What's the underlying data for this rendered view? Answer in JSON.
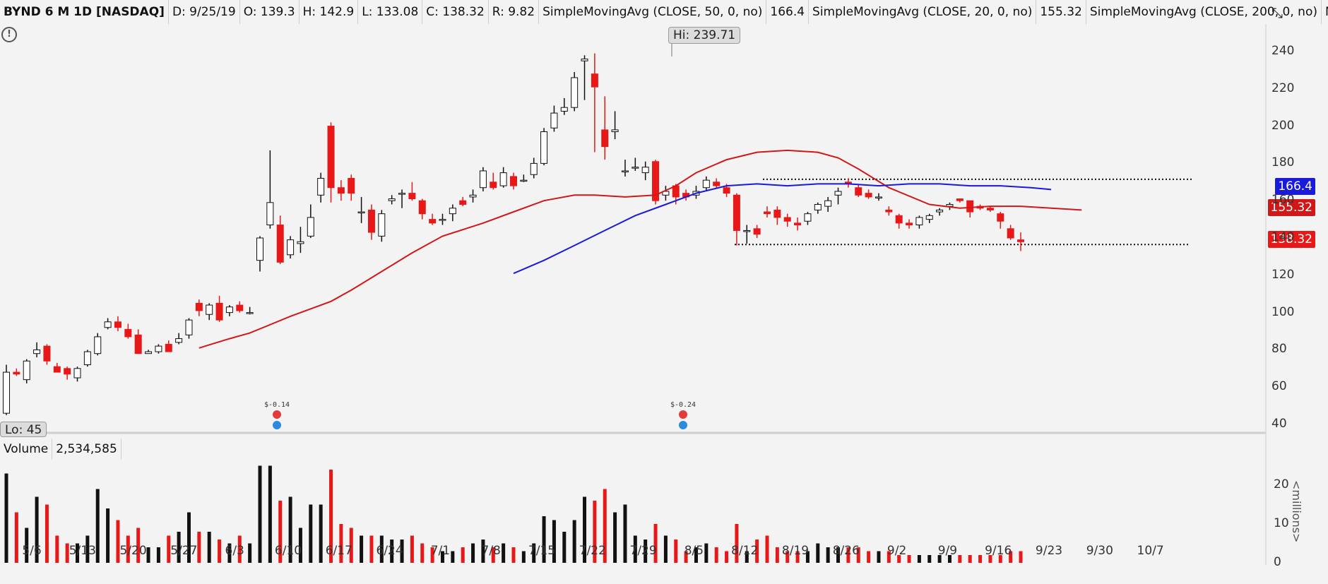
{
  "header": {
    "symbol": "BYND 6 M 1D [NASDAQ]",
    "date": "D: 9/25/19",
    "open": "O: 139.3",
    "high": "H: 142.9",
    "low": "L: 133.08",
    "close": "C: 138.32",
    "range": "R: 9.82",
    "sma50_label": "SimpleMovingAvg (CLOSE, 50, 0, no)",
    "sma50_value": "166.4",
    "sma20_label": "SimpleMovingAvg (CLOSE, 20, 0, no)",
    "sma20_value": "155.32",
    "sma200_label": "SimpleMovingAvg (CLOSE, 200, 0, no)",
    "sma200_value": "N/A"
  },
  "icons": {
    "alert": "exclamation-circle-icon",
    "expand": "expand-arrows-icon"
  },
  "labels": {
    "hi": "Hi: 239.71",
    "lo": "Lo: 45"
  },
  "price_tags": {
    "sma50": "166.4",
    "sma20": "155.32",
    "close": "138.32"
  },
  "volume": {
    "title": "Volume",
    "value": "2,534,585",
    "unit": "<millions>"
  },
  "earnings": [
    {
      "text": "$-0.14",
      "date": "6/3"
    },
    {
      "text": "$-0.24",
      "date": "7/29"
    }
  ],
  "colors": {
    "up": "#ffffff",
    "down": "#e81818",
    "sma50": "#1a1adb",
    "sma20": "#d01818",
    "vol_up": "#111111",
    "vol_down": "#e81818"
  },
  "chart_data": {
    "type": "candlestick",
    "ylim": [
      40,
      250
    ],
    "yticks": [
      "240",
      "220",
      "200",
      "180",
      "160",
      "140",
      "120",
      "100",
      "80",
      "60",
      "40"
    ],
    "xtick_labels": [
      "5/6",
      "5/13",
      "5/20",
      "5/27",
      "6/3",
      "6/10",
      "6/17",
      "6/24",
      "7/1",
      "7/8",
      "7/15",
      "7/22",
      "7/29",
      "8/5",
      "8/12",
      "8/19",
      "8/26",
      "9/2",
      "9/9",
      "9/16",
      "9/23",
      "9/30",
      "10/7"
    ],
    "volume_ylim": [
      0,
      28
    ],
    "volume_yticks": [
      "20",
      "10",
      "0"
    ],
    "resistance": 171.5,
    "support": 136.5,
    "candles": [
      [
        46,
        72,
        45,
        68,
        23
      ],
      [
        68,
        70,
        66,
        67,
        13
      ],
      [
        64,
        75,
        62,
        74,
        9
      ],
      [
        78,
        84,
        76,
        80,
        17
      ],
      [
        82,
        83,
        72,
        74,
        15
      ],
      [
        71,
        73,
        68,
        68,
        7
      ],
      [
        70,
        71,
        64,
        67,
        5
      ],
      [
        65,
        71,
        63,
        70,
        5
      ],
      [
        72,
        80,
        71,
        79,
        7
      ],
      [
        78,
        89,
        77,
        87,
        19
      ],
      [
        92,
        97,
        91,
        95,
        14
      ],
      [
        95,
        98,
        90,
        92,
        11
      ],
      [
        91,
        94,
        86,
        87,
        7
      ],
      [
        88,
        91,
        78,
        78,
        9
      ],
      [
        78,
        80,
        78,
        79,
        4
      ],
      [
        79,
        83,
        78,
        82,
        4
      ],
      [
        83,
        85,
        79,
        79,
        7
      ],
      [
        84,
        89,
        83,
        86,
        8
      ],
      [
        88,
        97,
        86,
        96,
        13
      ],
      [
        105,
        107,
        98,
        101,
        8
      ],
      [
        99,
        105,
        96,
        104,
        8
      ],
      [
        105,
        109,
        95,
        96,
        6
      ],
      [
        100,
        104,
        98,
        103,
        5
      ],
      [
        104,
        106,
        100,
        101,
        7
      ],
      [
        100,
        103,
        99,
        100,
        5
      ]
    ],
    "candles_b": [
      [
        128,
        141,
        122,
        140,
        25
      ],
      [
        147,
        187,
        145,
        159,
        25
      ],
      [
        147,
        152,
        126,
        127,
        16
      ],
      [
        131,
        141,
        129,
        139,
        17
      ],
      [
        137,
        146,
        132,
        138,
        9
      ],
      [
        141,
        158,
        140,
        151,
        15
      ],
      [
        163,
        175,
        159,
        172,
        15
      ],
      [
        200,
        202,
        159,
        167,
        24
      ],
      [
        167,
        171,
        160,
        164,
        10
      ],
      [
        172,
        174,
        160,
        164,
        9
      ],
      [
        154,
        162,
        148,
        154,
        7
      ],
      [
        155,
        158,
        139,
        143,
        7
      ],
      [
        141,
        155,
        138,
        153,
        7
      ],
      [
        160,
        163,
        158,
        161,
        6
      ],
      [
        164,
        166,
        156,
        164,
        6
      ],
      [
        164,
        170,
        160,
        161,
        7
      ],
      [
        160,
        161,
        150,
        153,
        5
      ],
      [
        150,
        153,
        147,
        148,
        4
      ],
      [
        150,
        153,
        147,
        150,
        3
      ],
      [
        153,
        158,
        149,
        156,
        3
      ],
      [
        160,
        162,
        157,
        158,
        4
      ],
      [
        162,
        166,
        159,
        163,
        5
      ],
      [
        167,
        178,
        165,
        176,
        6
      ],
      [
        170,
        175,
        166,
        167,
        4
      ],
      [
        168,
        178,
        167,
        175,
        5
      ],
      [
        173,
        175,
        166,
        168,
        4
      ],
      [
        171,
        174,
        170,
        171,
        3
      ],
      [
        174,
        183,
        172,
        180,
        5
      ],
      [
        180,
        199,
        179,
        197,
        12
      ],
      [
        199,
        211,
        197,
        207,
        11
      ],
      [
        208,
        215,
        206,
        210,
        8
      ],
      [
        210,
        229,
        208,
        226,
        11
      ],
      [
        235,
        238,
        214,
        236,
        17
      ],
      [
        228,
        239,
        186,
        221,
        16
      ],
      [
        198,
        216,
        182,
        189,
        19
      ],
      [
        197,
        208,
        193,
        198,
        13
      ],
      [
        176,
        182,
        173,
        176,
        15
      ],
      [
        178,
        183,
        176,
        178,
        7
      ],
      [
        175,
        181,
        171,
        178,
        6
      ],
      [
        181,
        182,
        158,
        160,
        10
      ],
      [
        163,
        168,
        160,
        165,
        7
      ],
      [
        168,
        169,
        158,
        162,
        6
      ],
      [
        164,
        166,
        160,
        162,
        3
      ]
    ],
    "candles_c": [
      [
        163,
        168,
        161,
        165,
        4
      ],
      [
        167,
        173,
        165,
        171,
        5
      ],
      [
        170,
        172,
        167,
        168,
        4
      ],
      [
        167,
        169,
        162,
        164,
        3
      ],
      [
        163,
        164,
        136,
        144,
        10
      ],
      [
        144,
        147,
        137,
        144,
        3
      ],
      [
        145,
        147,
        140,
        142,
        6
      ],
      [
        154,
        157,
        151,
        153,
        7
      ],
      [
        155,
        157,
        147,
        151,
        4
      ],
      [
        151,
        153,
        146,
        149,
        3
      ],
      [
        148,
        151,
        144,
        147,
        3
      ],
      [
        149,
        154,
        147,
        153,
        3
      ],
      [
        155,
        159,
        153,
        158,
        5
      ],
      [
        157,
        162,
        154,
        160,
        4
      ],
      [
        163,
        167,
        158,
        165,
        4
      ],
      [
        170,
        172,
        167,
        169,
        4
      ],
      [
        167,
        169,
        162,
        163,
        4
      ],
      [
        164,
        166,
        161,
        162,
        3
      ],
      [
        162,
        164,
        160,
        162,
        3
      ],
      [
        155,
        157,
        152,
        154,
        3
      ],
      [
        152,
        153,
        145,
        148,
        2
      ],
      [
        148,
        150,
        145,
        147,
        2
      ],
      [
        147,
        152,
        145,
        151,
        2
      ],
      [
        150,
        153,
        148,
        152,
        2
      ],
      [
        154,
        156,
        152,
        155,
        2
      ],
      [
        157,
        159,
        155,
        158,
        2
      ],
      [
        161,
        161,
        159,
        160,
        2
      ],
      [
        160,
        160,
        151,
        154,
        2
      ],
      [
        157,
        158,
        155,
        156,
        2
      ],
      [
        156,
        157,
        154,
        155,
        2
      ],
      [
        153,
        154,
        145,
        149,
        2
      ],
      [
        145,
        147,
        139,
        140,
        3
      ],
      [
        139,
        143,
        133,
        138,
        3
      ]
    ],
    "sma20": [
      [
        19,
        81
      ],
      [
        22,
        86
      ],
      [
        24,
        89
      ],
      [
        28,
        98
      ],
      [
        32,
        106
      ],
      [
        34,
        112
      ],
      [
        37,
        122
      ],
      [
        40,
        132
      ],
      [
        43,
        141
      ],
      [
        47,
        148
      ],
      [
        50,
        154
      ],
      [
        53,
        160
      ],
      [
        56,
        163
      ],
      [
        58,
        163
      ],
      [
        61,
        162
      ],
      [
        64,
        163
      ],
      [
        66,
        168
      ],
      [
        68,
        175
      ],
      [
        71,
        182
      ],
      [
        74,
        186
      ],
      [
        77,
        187
      ],
      [
        80,
        186
      ],
      [
        82,
        183
      ],
      [
        84,
        177
      ],
      [
        87,
        167
      ],
      [
        91,
        158
      ],
      [
        94,
        156
      ],
      [
        97,
        157
      ],
      [
        100,
        157
      ],
      [
        103,
        156
      ],
      [
        106,
        155
      ]
    ],
    "sma50": [
      [
        50,
        121
      ],
      [
        53,
        128
      ],
      [
        56,
        136
      ],
      [
        59,
        144
      ],
      [
        62,
        152
      ],
      [
        65,
        158
      ],
      [
        68,
        164
      ],
      [
        71,
        168
      ],
      [
        74,
        169
      ],
      [
        77,
        168
      ],
      [
        80,
        169
      ],
      [
        83,
        169
      ],
      [
        86,
        168
      ],
      [
        89,
        169
      ],
      [
        92,
        169
      ],
      [
        95,
        168
      ],
      [
        98,
        168
      ],
      [
        101,
        167
      ],
      [
        103,
        166
      ]
    ]
  }
}
